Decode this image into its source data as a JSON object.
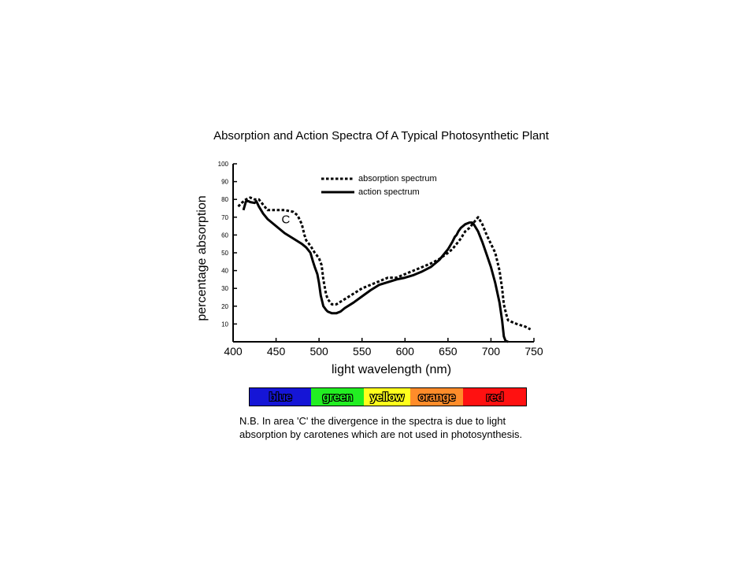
{
  "chart_data": {
    "type": "line",
    "title": "Absorption and Action Spectra Of A Typical Photosynthetic Plant",
    "xlabel": "light wavelength (nm)",
    "ylabel": "percentage absorption",
    "xlim": [
      400,
      750
    ],
    "ylim": [
      0,
      100
    ],
    "x_ticks": [
      "400",
      "450",
      "500",
      "550",
      "600",
      "650",
      "700",
      "750"
    ],
    "y_ticks": [
      "10",
      "20",
      "30",
      "40",
      "50",
      "60",
      "70",
      "80",
      "90",
      "100"
    ],
    "legend": {
      "placement": "top-center"
    },
    "series": [
      {
        "name": "absorption spectrum",
        "style": "dotted",
        "x": [
          406,
          410,
          415,
          420,
          425,
          430,
          435,
          440,
          450,
          460,
          465,
          470,
          475,
          480,
          483,
          485,
          490,
          495,
          500,
          503,
          505,
          508,
          510,
          515,
          520,
          530,
          540,
          550,
          560,
          570,
          575,
          580,
          590,
          600,
          610,
          620,
          630,
          640,
          650,
          655,
          660,
          665,
          670,
          675,
          680,
          685,
          690,
          695,
          700,
          705,
          710,
          713,
          715,
          718,
          720,
          730,
          740,
          746
        ],
        "y": [
          76,
          78,
          80,
          81,
          80,
          80,
          77,
          74,
          74,
          74,
          73.5,
          73,
          71,
          66,
          60,
          57,
          54,
          50,
          47,
          43,
          35,
          27,
          24,
          21,
          21,
          24,
          27,
          30,
          32,
          34,
          35,
          36,
          36,
          38,
          40,
          42,
          44,
          46.5,
          50,
          52,
          55,
          58,
          62,
          64,
          67,
          70,
          66,
          60,
          55,
          50,
          40,
          30,
          21,
          15,
          12,
          10,
          8.5,
          7
        ]
      },
      {
        "name": "action spectrum",
        "style": "solid",
        "x": [
          412,
          415,
          418,
          420,
          425,
          427,
          430,
          435,
          440,
          450,
          460,
          470,
          480,
          485,
          490,
          493,
          495,
          498,
          500,
          502,
          505,
          508,
          510,
          515,
          520,
          525,
          530,
          540,
          550,
          560,
          570,
          580,
          590,
          600,
          610,
          620,
          630,
          640,
          650,
          655,
          658,
          660,
          662,
          665,
          670,
          675,
          678,
          680,
          685,
          690,
          695,
          700,
          705,
          710,
          713,
          715,
          717,
          720
        ],
        "y": [
          74,
          79,
          79,
          78.5,
          78,
          79,
          76,
          72,
          69,
          65,
          61,
          58,
          55,
          53,
          50,
          45,
          42,
          38,
          33,
          26,
          20,
          18,
          17,
          16,
          16,
          17,
          19,
          22,
          25.5,
          29,
          32,
          33.5,
          35,
          36,
          37.5,
          39.5,
          42,
          46,
          52,
          56,
          59,
          60,
          62,
          64,
          66,
          67,
          67,
          66,
          62,
          56,
          49,
          42,
          33,
          22,
          12,
          3,
          0.5,
          0
        ]
      }
    ],
    "annotations": [
      {
        "text": "C",
        "x": 460,
        "y": 68
      }
    ]
  },
  "spectrum_bar": {
    "bands": [
      {
        "label": "blue",
        "color": "#1515d6",
        "from": 418,
        "to": 490
      },
      {
        "label": "green",
        "color": "#22ee22",
        "from": 490,
        "to": 551
      },
      {
        "label": "yellow",
        "color": "#ffff1c",
        "from": 551,
        "to": 605
      },
      {
        "label": "orange",
        "color": "#ff8c2a",
        "from": 605,
        "to": 667
      },
      {
        "label": "red",
        "color": "#ff1111",
        "from": 667,
        "to": 740
      }
    ]
  },
  "note": {
    "line1": "N.B. In area 'C' the divergence in the spectra is due to light",
    "line2": "absorption by carotenes which are not used in photosynthesis."
  }
}
